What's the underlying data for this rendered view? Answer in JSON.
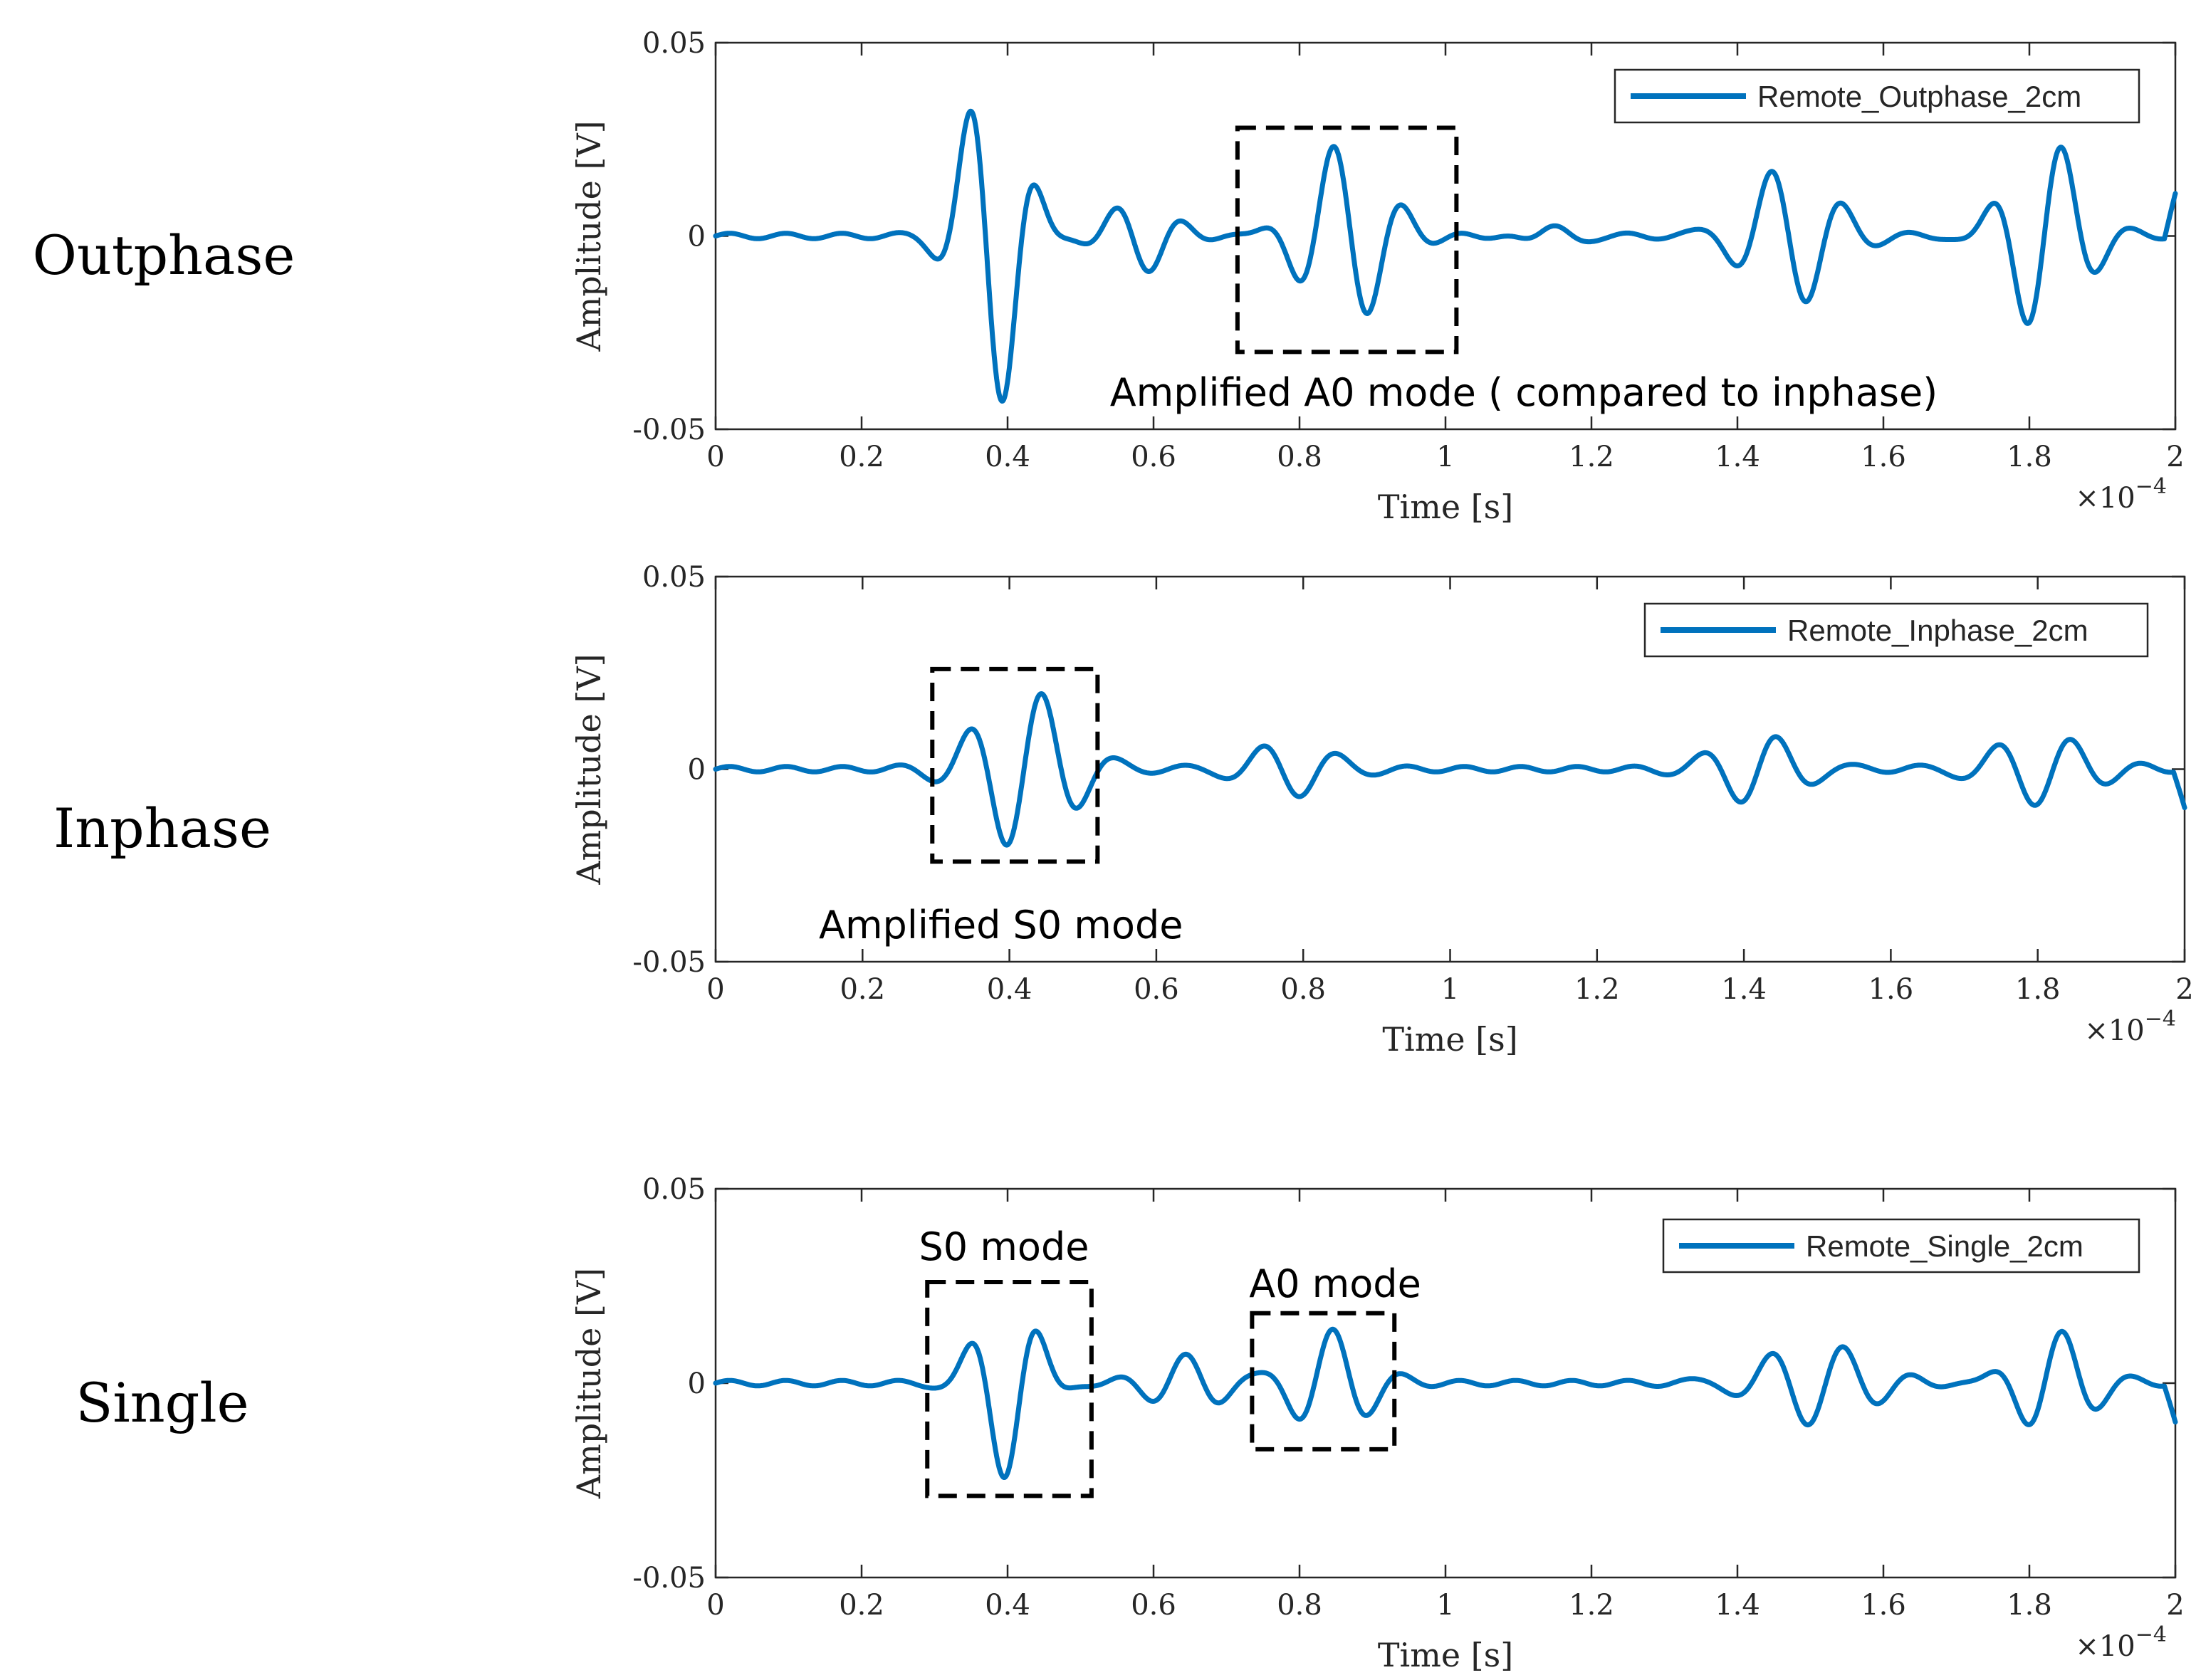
{
  "chart_data": [
    {
      "type": "line",
      "row_label": "Outphase",
      "xlabel": "Time [s]",
      "ylabel": "Amplitude [V]",
      "x_scale_label": "×10",
      "x_scale_exp": "−4",
      "xlim": [
        0,
        2
      ],
      "ylim": [
        -0.05,
        0.05
      ],
      "x_ticks": [
        "0",
        "0.2",
        "0.4",
        "0.6",
        "0.8",
        "1",
        "1.2",
        "1.4",
        "1.6",
        "1.8",
        "2"
      ],
      "y_ticks": [
        "0.05",
        "0",
        "-0.05"
      ],
      "legend": "Remote_Outphase_2cm",
      "annotation": {
        "text": "Amplified A0 mode ( compared to inphase)",
        "box_x": [
          0.715,
          1.015
        ],
        "box_y": [
          -0.03,
          0.028
        ]
      },
      "series": [
        {
          "name": "Remote_Outphase_2cm",
          "color": "#0072BD",
          "packets": [
            {
              "center": 0.38,
              "width": 0.055,
              "amp": 0.046
            },
            {
              "center": 0.58,
              "width": 0.06,
              "amp": 0.009
            },
            {
              "center": 0.86,
              "width": 0.075,
              "amp": 0.024
            },
            {
              "center": 1.15,
              "width": 0.05,
              "amp": 0.003
            },
            {
              "center": 1.47,
              "width": 0.08,
              "amp": 0.019
            },
            {
              "center": 1.82,
              "width": 0.07,
              "amp": 0.026
            }
          ],
          "frequency": 10.0,
          "end_value": 0.011
        }
      ]
    },
    {
      "type": "line",
      "row_label": "Inphase",
      "xlabel": "Time [s]",
      "ylabel": "Amplitude [V]",
      "x_scale_label": "×10",
      "x_scale_exp": "−4",
      "xlim": [
        0,
        2
      ],
      "ylim": [
        -0.05,
        0.05
      ],
      "x_ticks": [
        "0",
        "0.2",
        "0.4",
        "0.6",
        "0.8",
        "1",
        "1.2",
        "1.4",
        "1.6",
        "1.8",
        "2"
      ],
      "y_ticks": [
        "0.05",
        "0",
        "-0.05"
      ],
      "legend": "Remote_Inphase_2cm",
      "annotation": {
        "text": "Amplified S0 mode",
        "box_x": [
          0.295,
          0.52
        ],
        "box_y": [
          -0.024,
          0.026
        ]
      },
      "series": [
        {
          "name": "Remote_Inphase_2cm",
          "color": "#0072BD",
          "packets": [
            {
              "center": 0.42,
              "width": 0.085,
              "amp": 0.022
            },
            {
              "center": 0.78,
              "width": 0.08,
              "amp": 0.008
            },
            {
              "center": 1.42,
              "width": 0.08,
              "amp": 0.01
            },
            {
              "center": 1.8,
              "width": 0.09,
              "amp": 0.01
            }
          ],
          "frequency": 10.0,
          "end_value": -0.01
        }
      ]
    },
    {
      "type": "line",
      "row_label": "Single",
      "xlabel": "Time [s]",
      "ylabel": "Amplitude [V]",
      "x_scale_label": "×10",
      "x_scale_exp": "−4",
      "xlim": [
        0,
        2
      ],
      "ylim": [
        -0.05,
        0.05
      ],
      "x_ticks": [
        "0",
        "0.2",
        "0.4",
        "0.6",
        "0.8",
        "1",
        "1.2",
        "1.4",
        "1.6",
        "1.8",
        "2"
      ],
      "y_ticks": [
        "0.05",
        "0",
        "-0.05"
      ],
      "legend": "Remote_Single_2cm",
      "annotations": [
        {
          "text": "S0 mode",
          "box_x": [
            0.29,
            0.515
          ],
          "box_y": [
            -0.029,
            0.026
          ]
        },
        {
          "text": "A0 mode",
          "box_x": [
            0.735,
            0.93
          ],
          "box_y": [
            -0.017,
            0.018
          ]
        }
      ],
      "series": [
        {
          "name": "Remote_Single_2cm",
          "color": "#0072BD",
          "packets": [
            {
              "center": 0.4,
              "width": 0.055,
              "amp": 0.025
            },
            {
              "center": 0.65,
              "width": 0.07,
              "amp": 0.007
            },
            {
              "center": 0.84,
              "width": 0.07,
              "amp": 0.014
            },
            {
              "center": 1.5,
              "width": 0.1,
              "amp": 0.011
            },
            {
              "center": 1.83,
              "width": 0.07,
              "amp": 0.014
            }
          ],
          "frequency": 10.0,
          "end_value": -0.01
        }
      ]
    }
  ]
}
